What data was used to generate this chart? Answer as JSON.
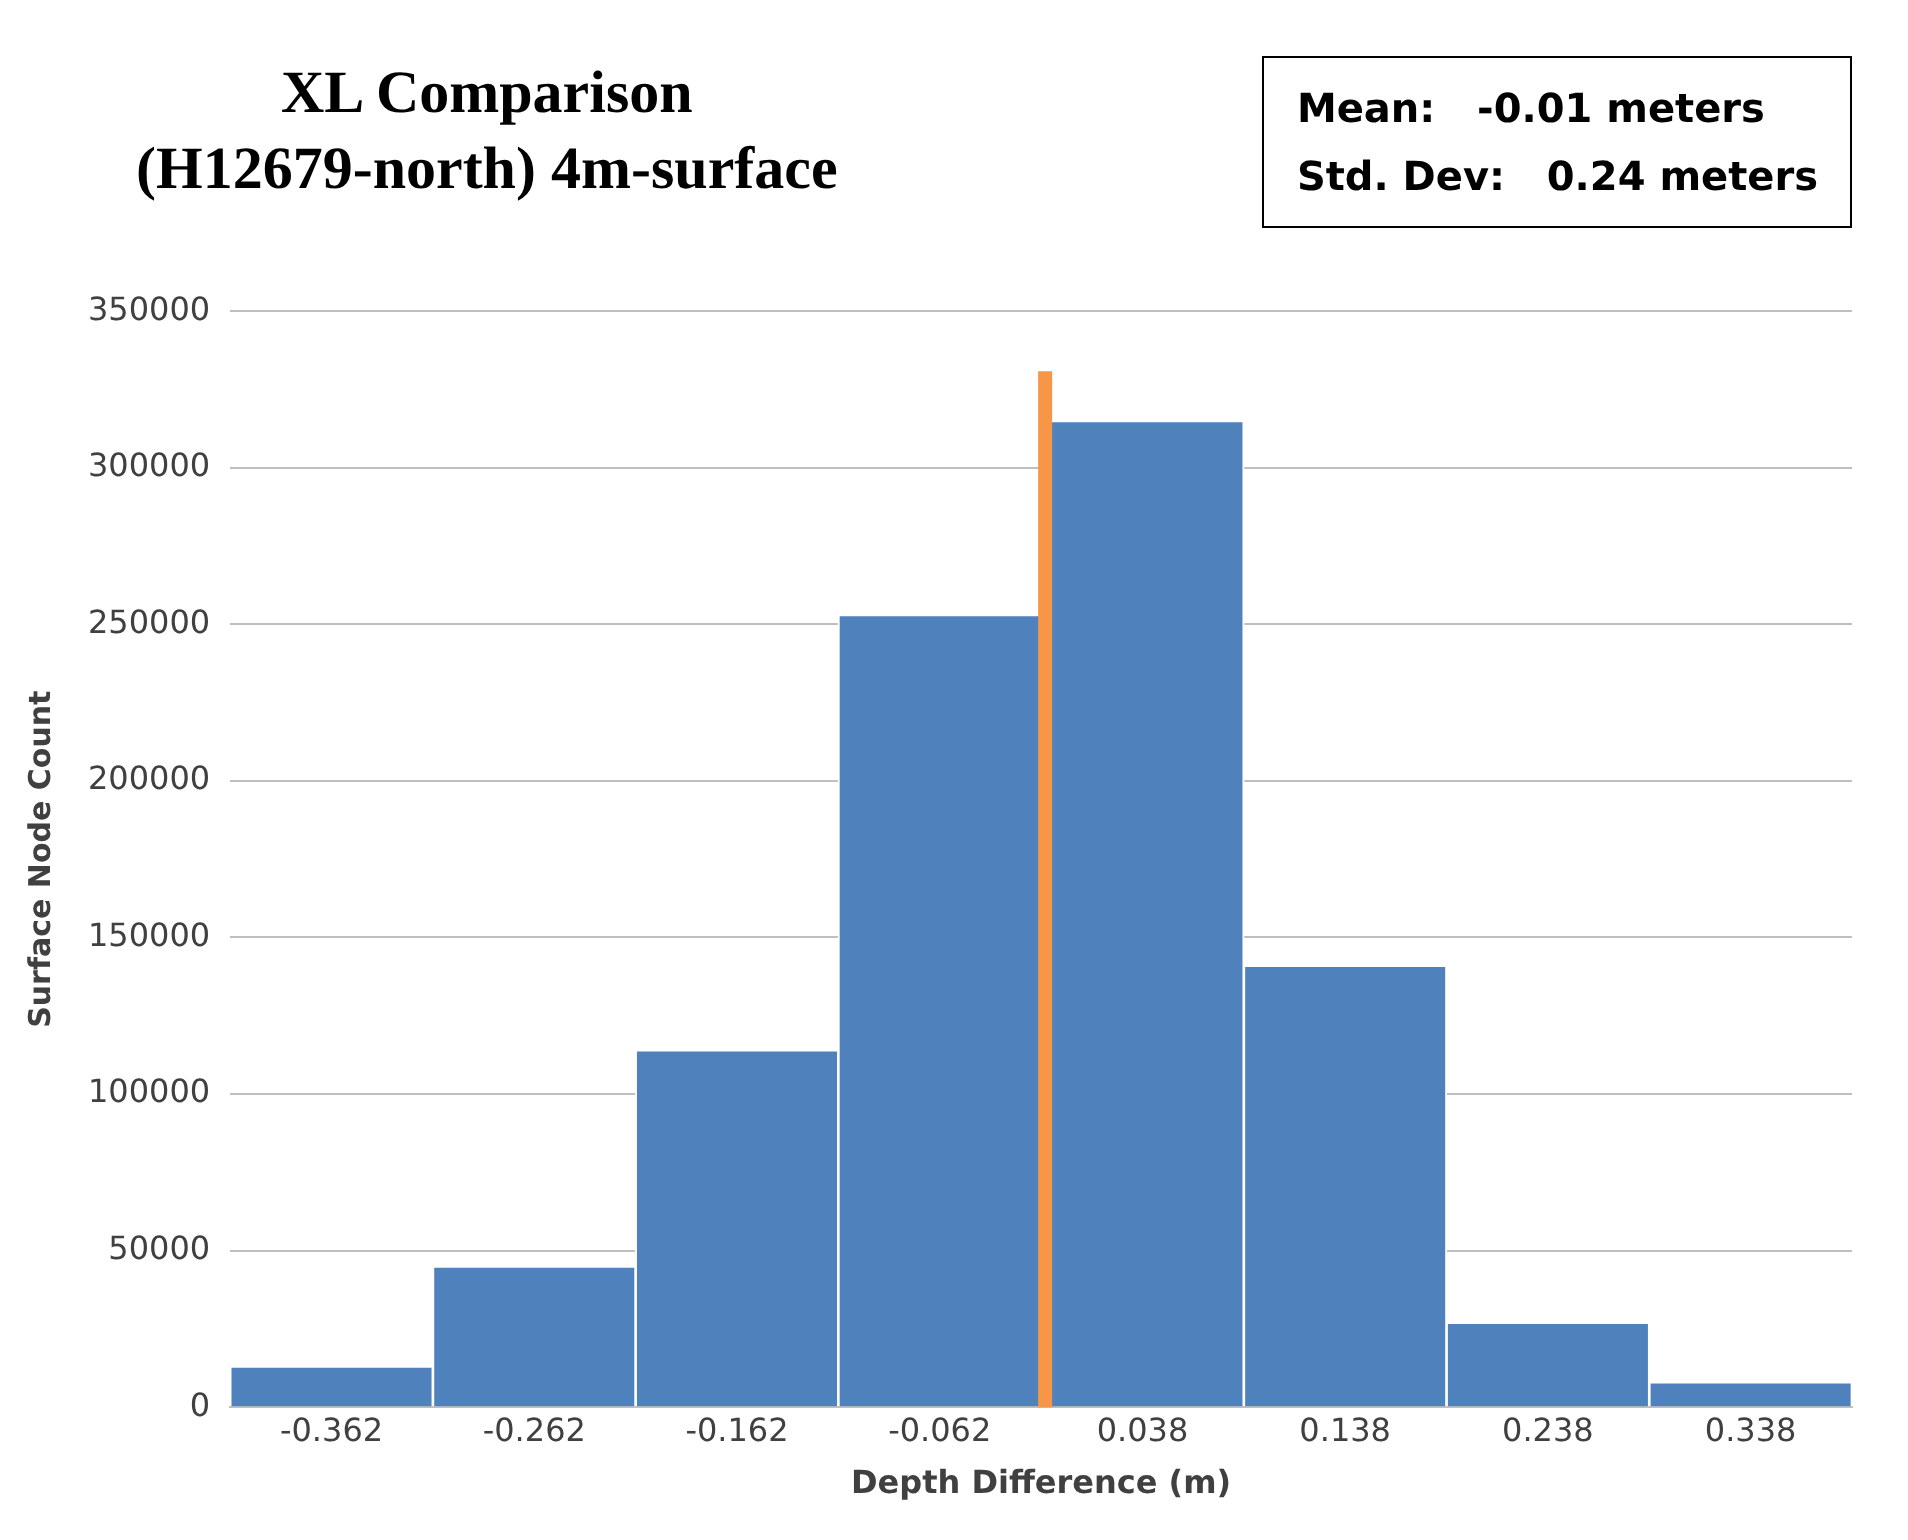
{
  "chart_data": {
    "type": "histogram",
    "title": "XL Comparison\n(H12679-north) 4m-surface",
    "xlabel": "Depth Difference (m)",
    "ylabel": "Surface Node Count",
    "bins": [
      -0.412,
      -0.312,
      -0.212,
      -0.112,
      -0.012,
      0.088,
      0.188,
      0.288,
      0.388
    ],
    "values": [
      13000,
      45000,
      114000,
      253000,
      315000,
      141000,
      27000,
      8000
    ],
    "color": "#4f81bd",
    "xlim": [
      -0.412,
      0.388
    ],
    "xticks": [
      -0.362,
      -0.262,
      -0.162,
      -0.062,
      0.038,
      0.138,
      0.238,
      0.338
    ],
    "ylim": [
      0,
      350000
    ],
    "yticks": [
      0,
      50000,
      100000,
      150000,
      200000,
      250000,
      300000,
      350000
    ],
    "grid": "y",
    "ref_lines": [
      {
        "axis": "x",
        "value": -0.01,
        "color": "#f79646"
      }
    ],
    "annotations": [
      "Mean:   -0.01 meters",
      "Std. Dev:   0.24 meters"
    ]
  }
}
